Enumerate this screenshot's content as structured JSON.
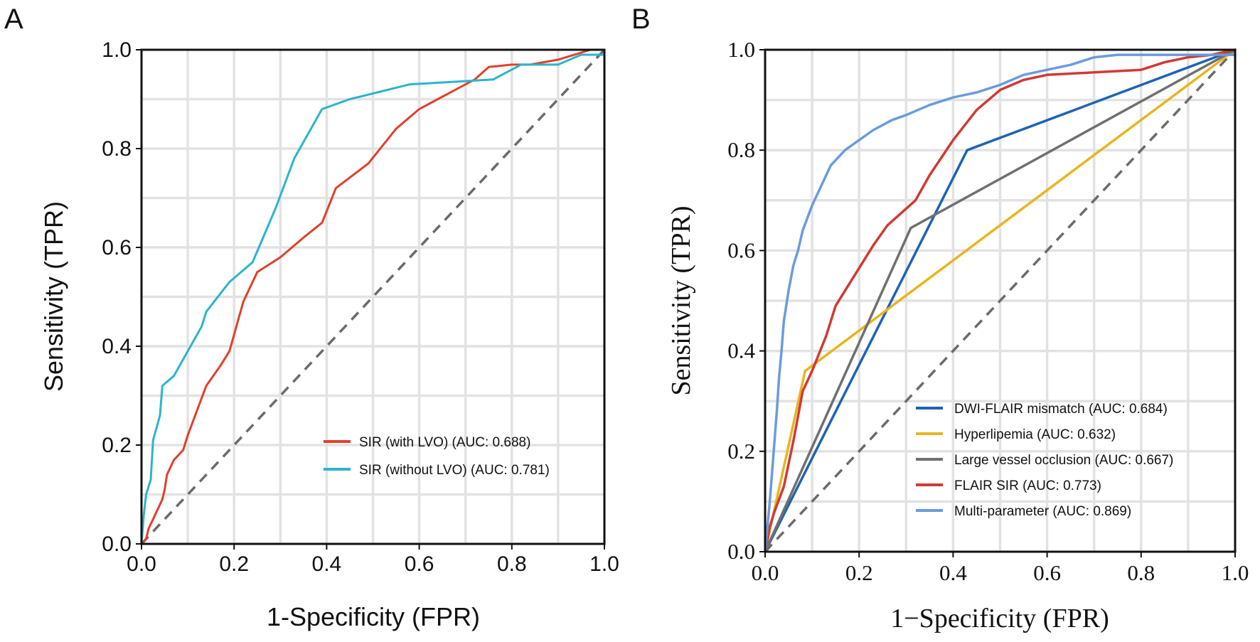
{
  "chart_data": [
    {
      "panel": "A",
      "type": "line",
      "xlabel": "1-Specificity (FPR)",
      "ylabel": "Sensitivity (TPR)",
      "xlim": [
        0,
        1
      ],
      "ylim": [
        0,
        1
      ],
      "xticks": [
        "0.0",
        "0.2",
        "0.4",
        "0.6",
        "0.8",
        "1.0"
      ],
      "yticks": [
        "0.0",
        "0.2",
        "0.4",
        "0.6",
        "0.8",
        "1.0"
      ],
      "grid": true,
      "legend_position": "bottom-right",
      "diagonal": true,
      "series": [
        {
          "name": "SIR (with LVO) (AUC: 0.688)",
          "color": "#e0402c",
          "points": [
            [
              0,
              0
            ],
            [
              0.01,
              0.01
            ],
            [
              0.015,
              0.03
            ],
            [
              0.03,
              0.06
            ],
            [
              0.045,
              0.09
            ],
            [
              0.05,
              0.11
            ],
            [
              0.055,
              0.14
            ],
            [
              0.07,
              0.17
            ],
            [
              0.09,
              0.19
            ],
            [
              0.1,
              0.22
            ],
            [
              0.12,
              0.27
            ],
            [
              0.14,
              0.32
            ],
            [
              0.17,
              0.36
            ],
            [
              0.19,
              0.39
            ],
            [
              0.22,
              0.49
            ],
            [
              0.25,
              0.55
            ],
            [
              0.3,
              0.58
            ],
            [
              0.35,
              0.62
            ],
            [
              0.39,
              0.65
            ],
            [
              0.42,
              0.72
            ],
            [
              0.49,
              0.77
            ],
            [
              0.55,
              0.84
            ],
            [
              0.6,
              0.88
            ],
            [
              0.66,
              0.91
            ],
            [
              0.72,
              0.94
            ],
            [
              0.75,
              0.965
            ],
            [
              0.8,
              0.97
            ],
            [
              0.84,
              0.97
            ],
            [
              0.9,
              0.98
            ],
            [
              0.97,
              1.0
            ],
            [
              1.0,
              1.0
            ]
          ]
        },
        {
          "name": "SIR (without LVO) (AUC: 0.781)",
          "color": "#2bb5cc",
          "points": [
            [
              0,
              0
            ],
            [
              0.005,
              0.06
            ],
            [
              0.01,
              0.1
            ],
            [
              0.02,
              0.13
            ],
            [
              0.025,
              0.21
            ],
            [
              0.04,
              0.26
            ],
            [
              0.045,
              0.32
            ],
            [
              0.07,
              0.34
            ],
            [
              0.1,
              0.39
            ],
            [
              0.13,
              0.44
            ],
            [
              0.14,
              0.47
            ],
            [
              0.19,
              0.53
            ],
            [
              0.24,
              0.57
            ],
            [
              0.29,
              0.68
            ],
            [
              0.33,
              0.78
            ],
            [
              0.39,
              0.88
            ],
            [
              0.45,
              0.9
            ],
            [
              0.58,
              0.93
            ],
            [
              0.67,
              0.935
            ],
            [
              0.76,
              0.94
            ],
            [
              0.82,
              0.97
            ],
            [
              0.9,
              0.97
            ],
            [
              0.95,
              0.99
            ],
            [
              1.0,
              0.99
            ]
          ]
        }
      ]
    },
    {
      "panel": "B",
      "type": "line",
      "xlabel": "1−Specificity (FPR)",
      "ylabel": "Sensitivity (TPR)",
      "xlim": [
        0,
        1
      ],
      "ylim": [
        0,
        1
      ],
      "xticks": [
        "0.0",
        "0.2",
        "0.4",
        "0.6",
        "0.8",
        "1.0"
      ],
      "yticks": [
        "0.0",
        "0.2",
        "0.4",
        "0.6",
        "0.8",
        "1.0"
      ],
      "grid": true,
      "legend_position": "bottom-right",
      "diagonal": true,
      "series": [
        {
          "name": "DWI-FLAIR mismatch (AUC: 0.684)",
          "color": "#1f63b4",
          "points": [
            [
              0,
              0
            ],
            [
              0.43,
              0.8
            ],
            [
              1.0,
              1.0
            ]
          ]
        },
        {
          "name": "Hyperlipemia (AUC: 0.632)",
          "color": "#e8b51e",
          "points": [
            [
              0,
              0
            ],
            [
              0.085,
              0.36
            ],
            [
              1.0,
              1.0
            ]
          ]
        },
        {
          "name": "Large vessel occlusion (AUC: 0.667)",
          "color": "#707070",
          "points": [
            [
              0,
              0
            ],
            [
              0.31,
              0.645
            ],
            [
              1.0,
              1.0
            ]
          ]
        },
        {
          "name": "FLAIR SIR (AUC: 0.773)",
          "color": "#d03a35",
          "points": [
            [
              0,
              0
            ],
            [
              0.01,
              0.05
            ],
            [
              0.02,
              0.08
            ],
            [
              0.04,
              0.13
            ],
            [
              0.06,
              0.22
            ],
            [
              0.08,
              0.32
            ],
            [
              0.1,
              0.36
            ],
            [
              0.13,
              0.43
            ],
            [
              0.15,
              0.49
            ],
            [
              0.19,
              0.55
            ],
            [
              0.23,
              0.61
            ],
            [
              0.26,
              0.65
            ],
            [
              0.32,
              0.7
            ],
            [
              0.35,
              0.75
            ],
            [
              0.4,
              0.82
            ],
            [
              0.45,
              0.88
            ],
            [
              0.5,
              0.92
            ],
            [
              0.55,
              0.94
            ],
            [
              0.6,
              0.95
            ],
            [
              0.7,
              0.955
            ],
            [
              0.8,
              0.96
            ],
            [
              0.85,
              0.975
            ],
            [
              0.9,
              0.985
            ],
            [
              0.95,
              0.99
            ],
            [
              1.0,
              1.0
            ]
          ]
        },
        {
          "name": "Multi-parameter  (AUC: 0.869)",
          "color": "#6b9bdc",
          "points": [
            [
              0,
              0
            ],
            [
              0.005,
              0.05
            ],
            [
              0.01,
              0.1
            ],
            [
              0.015,
              0.16
            ],
            [
              0.02,
              0.22
            ],
            [
              0.025,
              0.28
            ],
            [
              0.03,
              0.35
            ],
            [
              0.035,
              0.4
            ],
            [
              0.04,
              0.46
            ],
            [
              0.05,
              0.52
            ],
            [
              0.06,
              0.57
            ],
            [
              0.07,
              0.6
            ],
            [
              0.08,
              0.64
            ],
            [
              0.1,
              0.69
            ],
            [
              0.12,
              0.73
            ],
            [
              0.14,
              0.77
            ],
            [
              0.17,
              0.8
            ],
            [
              0.2,
              0.82
            ],
            [
              0.23,
              0.84
            ],
            [
              0.27,
              0.86
            ],
            [
              0.3,
              0.87
            ],
            [
              0.35,
              0.89
            ],
            [
              0.4,
              0.905
            ],
            [
              0.45,
              0.915
            ],
            [
              0.5,
              0.93
            ],
            [
              0.55,
              0.95
            ],
            [
              0.6,
              0.96
            ],
            [
              0.65,
              0.97
            ],
            [
              0.7,
              0.985
            ],
            [
              0.75,
              0.99
            ],
            [
              0.85,
              0.99
            ],
            [
              1.0,
              0.99
            ]
          ]
        }
      ]
    }
  ]
}
